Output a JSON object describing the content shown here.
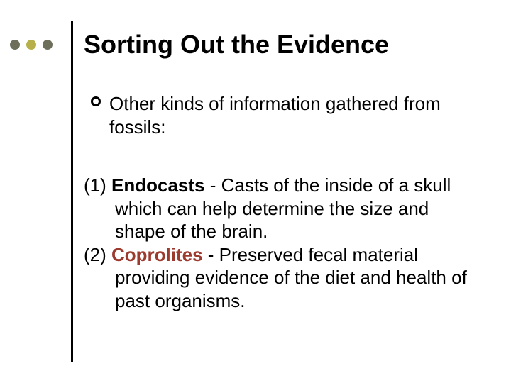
{
  "decoration": {
    "dots": [
      {
        "color": "#6e6f5b"
      },
      {
        "color": "#b7b04a"
      },
      {
        "color": "#6e6f5b"
      }
    ],
    "vline_color": "#000000"
  },
  "title": {
    "text": "Sorting Out the Evidence",
    "fontsize": 36,
    "fontweight": "bold",
    "color": "#000000"
  },
  "bullet": {
    "text": "Other kinds of information gathered from fossils:",
    "fontsize": 26,
    "color": "#000000"
  },
  "items": [
    {
      "num": "(1) ",
      "term": "Endocasts",
      "term_color": "#000000",
      "def": " - Casts of the inside of a skull which can help determine the size and shape of the brain."
    },
    {
      "num": "(2) ",
      "term": "Coprolites",
      "term_color": "#9c3a2e",
      "def": " - Preserved fecal material providing evidence of the diet and health of past organisms."
    }
  ],
  "body": {
    "fontsize": 26,
    "color": "#000000",
    "background_color": "#ffffff"
  }
}
